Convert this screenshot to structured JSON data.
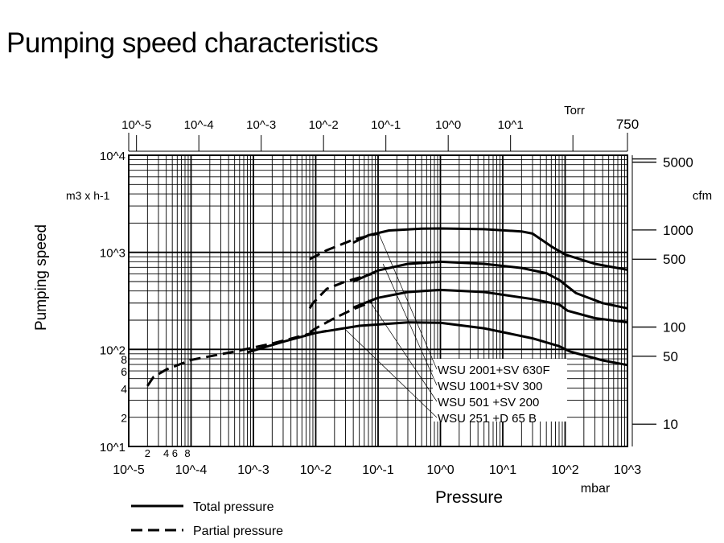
{
  "chart_data": {
    "type": "line",
    "title": "Pumping speed characteristics",
    "xlabel": "Pressure",
    "xunit": "mbar",
    "x_scale": "log",
    "xlim": [
      1e-05,
      1000
    ],
    "x_ticks": [
      "10^-5",
      "10^-4",
      "10^-3",
      "10^-2",
      "10^-1",
      "10^0",
      "10^1",
      "10^2",
      "10^3"
    ],
    "x_minor_labels": [
      "2",
      "4",
      "6",
      "8"
    ],
    "ylabel": "Pumping speed",
    "yunit": "m3 x h-1",
    "y_scale": "log",
    "ylim": [
      10,
      10000
    ],
    "y_ticks": [
      "10^1",
      "10^2",
      "10^3",
      "10^4"
    ],
    "y_minor_labels": [
      "8",
      "6",
      "4",
      "2"
    ],
    "top_axis": {
      "unit": "Torr",
      "ticks": [
        "10^-5",
        "10^-4",
        "10^-3",
        "10^-2",
        "10^-1",
        "10^0",
        "10^1"
      ],
      "end_label": "750"
    },
    "right_axis": {
      "unit": "cfm",
      "ticks": [
        "5000",
        "1000",
        "500",
        "100",
        "50",
        "10"
      ]
    },
    "grid": true,
    "legend": [
      {
        "label": "Total pressure",
        "style": "solid"
      },
      {
        "label": "Partial pressure",
        "style": "dashed"
      }
    ],
    "series": [
      {
        "name": "WSU 2001+SV 630F",
        "total": [
          [
            0.04,
            1260
          ],
          [
            0.07,
            1500
          ],
          [
            0.15,
            1680
          ],
          [
            0.5,
            1750
          ],
          [
            1,
            1760
          ],
          [
            5,
            1730
          ],
          [
            20,
            1640
          ],
          [
            30,
            1560
          ],
          [
            60,
            1150
          ],
          [
            100,
            950
          ],
          [
            300,
            760
          ],
          [
            1000,
            660
          ]
        ],
        "partial": [
          [
            0.008,
            850
          ],
          [
            0.015,
            1050
          ],
          [
            0.04,
            1350
          ],
          [
            0.1,
            1560
          ]
        ]
      },
      {
        "name": "WSU 1001+SV 300",
        "total": [
          [
            0.04,
            500
          ],
          [
            0.1,
            650
          ],
          [
            0.3,
            760
          ],
          [
            1,
            800
          ],
          [
            5,
            760
          ],
          [
            20,
            690
          ],
          [
            50,
            610
          ],
          [
            80,
            520
          ],
          [
            150,
            380
          ],
          [
            400,
            300
          ],
          [
            1000,
            265
          ]
        ],
        "partial": [
          [
            0.008,
            265
          ],
          [
            0.009,
            300
          ],
          [
            0.015,
            420
          ],
          [
            0.03,
            500
          ],
          [
            0.08,
            600
          ]
        ]
      },
      {
        "name": "WSU 501 +SV 200",
        "total": [
          [
            0.04,
            270
          ],
          [
            0.1,
            340
          ],
          [
            0.3,
            390
          ],
          [
            1,
            410
          ],
          [
            5,
            390
          ],
          [
            30,
            330
          ],
          [
            80,
            290
          ],
          [
            110,
            250
          ],
          [
            300,
            210
          ],
          [
            1000,
            190
          ]
        ],
        "partial": [
          [
            0.008,
            150
          ],
          [
            0.01,
            165
          ],
          [
            0.02,
            210
          ],
          [
            0.04,
            260
          ],
          [
            0.08,
            310
          ]
        ]
      },
      {
        "name": "WSU 251 +D 65 B",
        "total": [
          [
            0.0008,
            93
          ],
          [
            0.003,
            120
          ],
          [
            0.01,
            148
          ],
          [
            0.05,
            175
          ],
          [
            0.3,
            190
          ],
          [
            1,
            188
          ],
          [
            5,
            165
          ],
          [
            30,
            130
          ],
          [
            80,
            108
          ],
          [
            120,
            95
          ],
          [
            400,
            77
          ],
          [
            1000,
            69
          ]
        ],
        "partial": [
          [
            2e-05,
            42
          ],
          [
            2.5e-05,
            52
          ],
          [
            4e-05,
            62
          ],
          [
            0.0001,
            78
          ],
          [
            0.0005,
            95
          ],
          [
            0.002,
            115
          ],
          [
            0.008,
            145
          ],
          [
            0.015,
            155
          ]
        ]
      }
    ]
  }
}
